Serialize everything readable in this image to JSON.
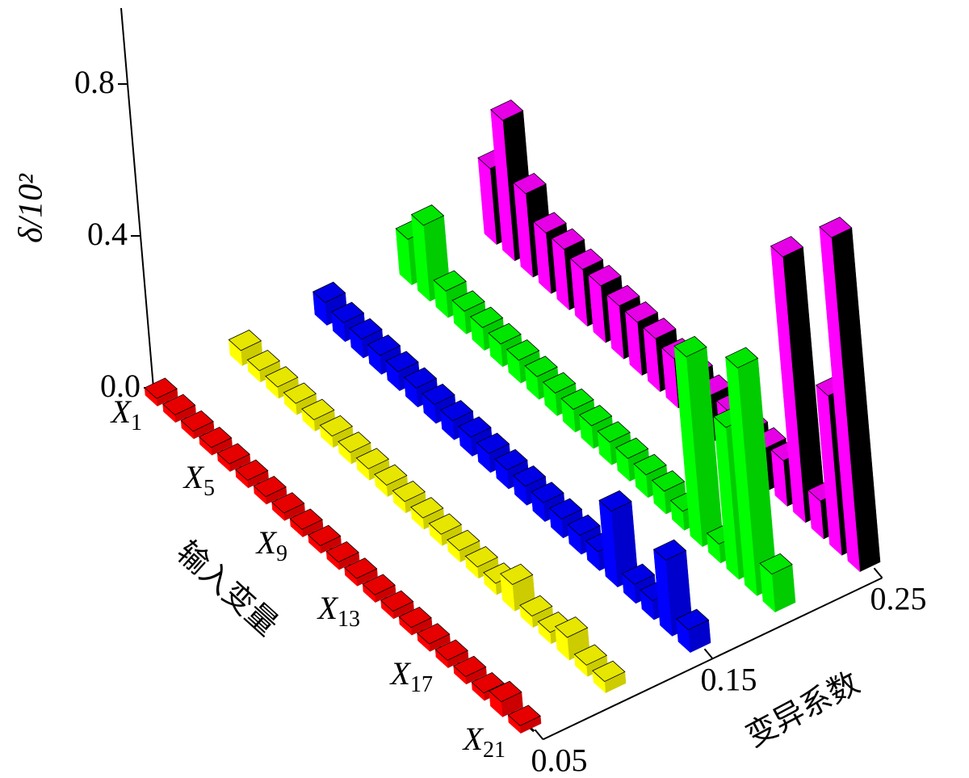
{
  "chart_data": {
    "type": "bar3d",
    "zlabel": "δ/10²",
    "xlabel": "输入变量",
    "rowlabel": "变异系数",
    "categories": [
      "X1",
      null,
      null,
      null,
      "X5",
      null,
      null,
      null,
      "X9",
      null,
      null,
      null,
      "X13",
      null,
      null,
      null,
      "X17",
      null,
      null,
      null,
      "X21"
    ],
    "rows": [
      0.05,
      0.1,
      0.15,
      0.2,
      0.25
    ],
    "rowticks": [
      0.05,
      0.15,
      0.25
    ],
    "zlim": [
      0,
      1
    ],
    "zticks": [
      {
        "value": 0,
        "label": "0.0"
      },
      0.4,
      0.8
    ],
    "series": [
      {
        "color": "#ff0000",
        "values": [
          0.02,
          0.02,
          0.02,
          0.02,
          0.02,
          0.02,
          0.02,
          0.02,
          0.02,
          0.02,
          0.02,
          0.02,
          0.02,
          0.02,
          0.02,
          0.02,
          0.02,
          0.02,
          0.02,
          0.04,
          0.02
        ]
      },
      {
        "color": "#ffff00",
        "values": [
          0.04,
          0.03,
          0.03,
          0.03,
          0.03,
          0.03,
          0.03,
          0.03,
          0.03,
          0.03,
          0.03,
          0.03,
          0.03,
          0.03,
          0.03,
          0.07,
          0.03,
          0.03,
          0.06,
          0.03,
          0.03
        ]
      },
      {
        "color": "#0000ff",
        "values": [
          0.06,
          0.05,
          0.05,
          0.05,
          0.05,
          0.05,
          0.05,
          0.05,
          0.05,
          0.05,
          0.05,
          0.05,
          0.05,
          0.05,
          0.05,
          0.05,
          0.2,
          0.05,
          0.05,
          0.2,
          0.06
        ]
      },
      {
        "color": "#00ff00",
        "values": [
          0.12,
          0.2,
          0.07,
          0.06,
          0.06,
          0.06,
          0.06,
          0.06,
          0.06,
          0.06,
          0.06,
          0.06,
          0.06,
          0.06,
          0.06,
          0.05,
          0.5,
          0.05,
          0.4,
          0.6,
          0.1
        ]
      },
      {
        "color": "#ff00ff",
        "values": [
          0.2,
          0.37,
          0.22,
          0.16,
          0.16,
          0.15,
          0.15,
          0.14,
          0.14,
          0.14,
          0.13,
          0.13,
          0.12,
          0.12,
          0.11,
          0.11,
          0.12,
          0.7,
          0.1,
          0.42,
          0.88
        ]
      }
    ]
  }
}
